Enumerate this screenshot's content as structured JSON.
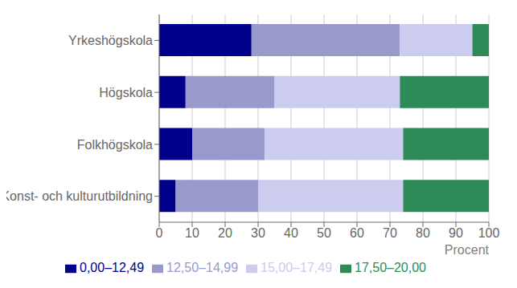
{
  "chart_data": {
    "type": "bar",
    "orientation": "horizontal",
    "stacked": true,
    "grid": true,
    "xlabel": "Procent",
    "categories": [
      "Konst- och kulturutbildning",
      "Folkhögskola",
      "Högskola",
      "Yrkeshögskola"
    ],
    "series": [
      {
        "name": "0,00‒12,49",
        "color": "#00008B",
        "values": [
          5,
          10,
          8,
          28
        ]
      },
      {
        "name": "12,50‒14,99",
        "color": "#9999CC",
        "values": [
          25,
          22,
          27,
          45
        ]
      },
      {
        "name": "15,00‒17,49",
        "color": "#CCCCEE",
        "values": [
          44,
          42,
          38,
          22
        ]
      },
      {
        "name": "17,50‒20,00",
        "color": "#2E8B57",
        "values": [
          26,
          26,
          27,
          5
        ]
      }
    ],
    "xlim": [
      0,
      100
    ],
    "xticks": [
      0,
      10,
      20,
      30,
      40,
      50,
      60,
      70,
      80,
      90,
      100
    ]
  }
}
